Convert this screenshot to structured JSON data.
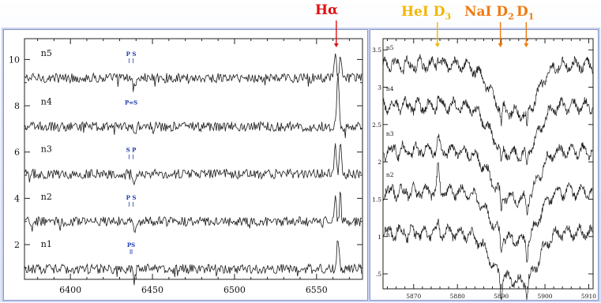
{
  "annotations": {
    "halpha": {
      "text": "Hα",
      "color": "#e01010"
    },
    "hei": {
      "main": "HeI D",
      "sub": "3",
      "color": "#f2b600"
    },
    "nai": {
      "main": "NaI D",
      "sub": "2",
      "color": "#f07a10"
    },
    "d1": {
      "main": "D",
      "sub": "1",
      "color": "#f07a10"
    }
  },
  "chart_data": [
    {
      "type": "line",
      "title": "",
      "xlabel": "",
      "ylabel": "",
      "xlim": [
        6372,
        6578
      ],
      "ylim": [
        0.5,
        10.9
      ],
      "x_ticks": [
        6400,
        6450,
        6500,
        6550
      ],
      "y_ticks": [
        2,
        4,
        6,
        8,
        10
      ],
      "grid": false,
      "halpha_center": 6563,
      "series": [
        {
          "name": "n5",
          "continuum": 9.2,
          "emission": "double",
          "peak": 10.35,
          "marker": {
            "text": "P S",
            "x": 6437
          }
        },
        {
          "name": "n4",
          "continuum": 7.1,
          "emission": "single",
          "peak": 9.55,
          "marker": {
            "text": "P=S",
            "x": 6437
          }
        },
        {
          "name": "n3",
          "continuum": 5.05,
          "emission": "double",
          "peak": 6.6,
          "marker": {
            "text": "S P",
            "x": 6437
          }
        },
        {
          "name": "n2",
          "continuum": 3.0,
          "emission": "double",
          "peak": 4.35,
          "marker": {
            "text": "P S",
            "x": 6437
          }
        },
        {
          "name": "n1",
          "continuum": 0.95,
          "emission": "single",
          "peak": 2.25,
          "marker": {
            "text": "PS",
            "x": 6437
          }
        }
      ]
    },
    {
      "type": "line",
      "title": "",
      "xlabel": "",
      "ylabel": "",
      "xlim": [
        5863,
        5911
      ],
      "ylim": [
        0.3,
        3.65
      ],
      "x_ticks": [
        5870,
        5880,
        5890,
        5900,
        5910
      ],
      "y_ticks": [
        0.5,
        1,
        1.5,
        2,
        2.5,
        3,
        3.5
      ],
      "y_tick_labels": [
        ".5",
        "1",
        "1.5",
        "2",
        "2.5",
        "3",
        "3.5"
      ],
      "grid": false,
      "lines": {
        "HeI_D3": 5875.6,
        "NaI_D2": 5890.0,
        "NaI_D1": 5895.9
      },
      "series": [
        {
          "name": "n5",
          "level": 3.3,
          "label_at": 3.5
        },
        {
          "name": "n4",
          "level": 2.75,
          "label_at": 2.95
        },
        {
          "name": "n3",
          "level": 2.15,
          "label_at": 2.35
        },
        {
          "name": "n2",
          "level": 1.6,
          "label_at": 1.8
        },
        {
          "name": "n1",
          "level": 1.05,
          "label_at": 1.0
        }
      ]
    }
  ]
}
